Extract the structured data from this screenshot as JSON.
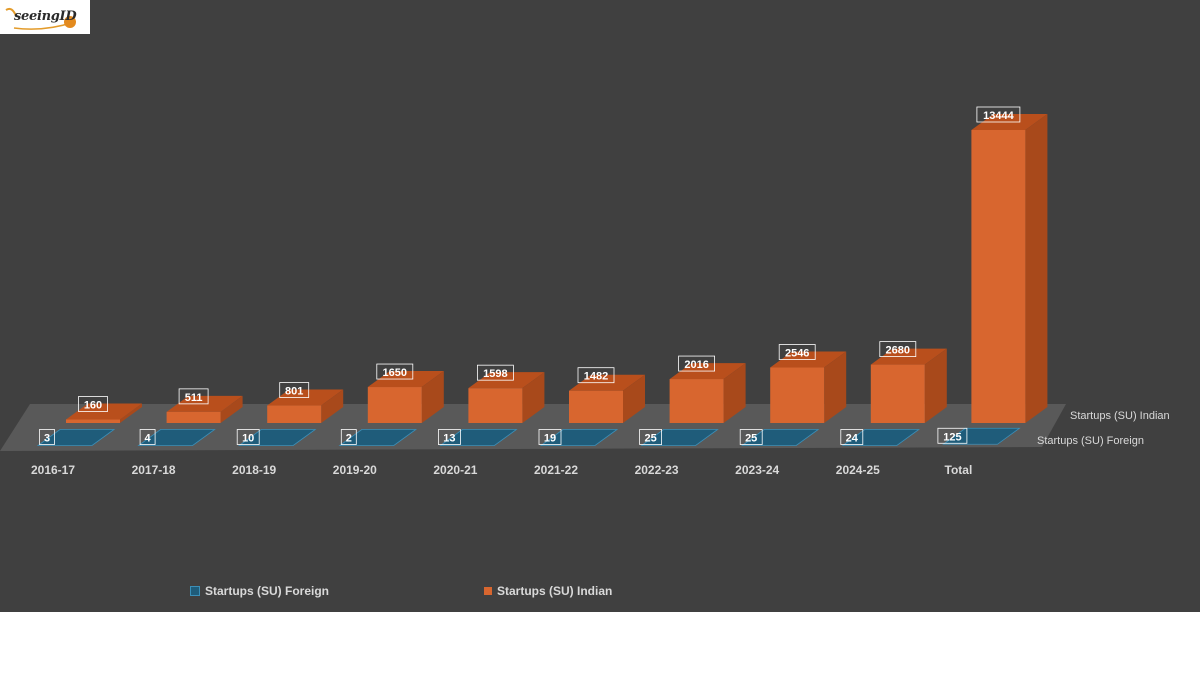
{
  "colors": {
    "background": "#404040",
    "floor": "#595959",
    "foreign_fill": "#1f5c7a",
    "foreign_edge": "#3b8fb8",
    "indian_front": "#d8662f",
    "indian_top": "#b94f1c",
    "indian_side": "#a8491b",
    "label_text": "#ffffff",
    "axis_text": "#d9d9d9"
  },
  "logo": {
    "text": "seeingID"
  },
  "chart_data": {
    "type": "bar",
    "title": "",
    "xlabel": "",
    "ylabel": "",
    "categories": [
      "2016-17",
      "2017-18",
      "2018-19",
      "2019-20",
      "2020-21",
      "2021-22",
      "2022-23",
      "2023-24",
      "2024-25",
      "Total"
    ],
    "series": [
      {
        "name": "Startups (SU) Foreign",
        "values": [
          3,
          4,
          10,
          2,
          13,
          19,
          25,
          25,
          24,
          125
        ]
      },
      {
        "name": "Startups (SU) Indian",
        "values": [
          160,
          511,
          801,
          1650,
          1598,
          1482,
          2016,
          2546,
          2680,
          13444
        ]
      }
    ],
    "ylim": [
      0,
      13444
    ],
    "grid": false,
    "legend_position": "bottom",
    "style": "3d-clustered-depth"
  }
}
